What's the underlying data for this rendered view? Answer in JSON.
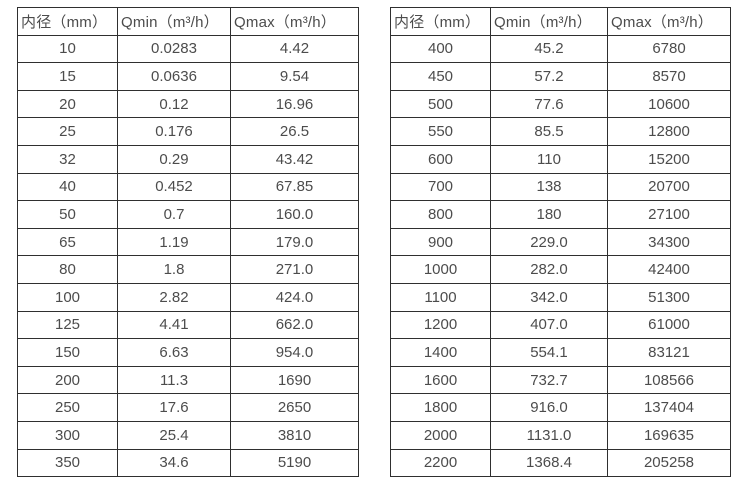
{
  "page": {
    "background_color": "#ffffff",
    "border_color": "#2f2f2f",
    "text_color": "#4c4c4c"
  },
  "tables": [
    {
      "name": "flow-spec-table-small-diameters",
      "headers": [
        "内径（mm）",
        "Qmin（m³/h）",
        "Qmax（m³/h）"
      ],
      "rows": [
        [
          "10",
          "0.0283",
          "4.42"
        ],
        [
          "15",
          "0.0636",
          "9.54"
        ],
        [
          "20",
          "0.12",
          "16.96"
        ],
        [
          "25",
          "0.176",
          "26.5"
        ],
        [
          "32",
          "0.29",
          "43.42"
        ],
        [
          "40",
          "0.452",
          "67.85"
        ],
        [
          "50",
          "0.7",
          "160.0"
        ],
        [
          "65",
          "1.19",
          "179.0"
        ],
        [
          "80",
          "1.8",
          "271.0"
        ],
        [
          "100",
          "2.82",
          "424.0"
        ],
        [
          "125",
          "4.41",
          "662.0"
        ],
        [
          "150",
          "6.63",
          "954.0"
        ],
        [
          "200",
          "11.3",
          "1690"
        ],
        [
          "250",
          "17.6",
          "2650"
        ],
        [
          "300",
          "25.4",
          "3810"
        ],
        [
          "350",
          "34.6",
          "5190"
        ]
      ]
    },
    {
      "name": "flow-spec-table-large-diameters",
      "headers": [
        "内径（mm）",
        "Qmin（m³/h）",
        "Qmax（m³/h）"
      ],
      "rows": [
        [
          "400",
          "45.2",
          "6780"
        ],
        [
          "450",
          "57.2",
          "8570"
        ],
        [
          "500",
          "77.6",
          "10600"
        ],
        [
          "550",
          "85.5",
          "12800"
        ],
        [
          "600",
          "110",
          "15200"
        ],
        [
          "700",
          "138",
          "20700"
        ],
        [
          "800",
          "180",
          "27100"
        ],
        [
          "900",
          "229.0",
          "34300"
        ],
        [
          "1000",
          "282.0",
          "42400"
        ],
        [
          "1100",
          "342.0",
          "51300"
        ],
        [
          "1200",
          "407.0",
          "61000"
        ],
        [
          "1400",
          "554.1",
          "83121"
        ],
        [
          "1600",
          "732.7",
          "108566"
        ],
        [
          "1800",
          "916.0",
          "137404"
        ],
        [
          "2000",
          "1131.0",
          "169635"
        ],
        [
          "2200",
          "1368.4",
          "205258"
        ]
      ]
    }
  ]
}
